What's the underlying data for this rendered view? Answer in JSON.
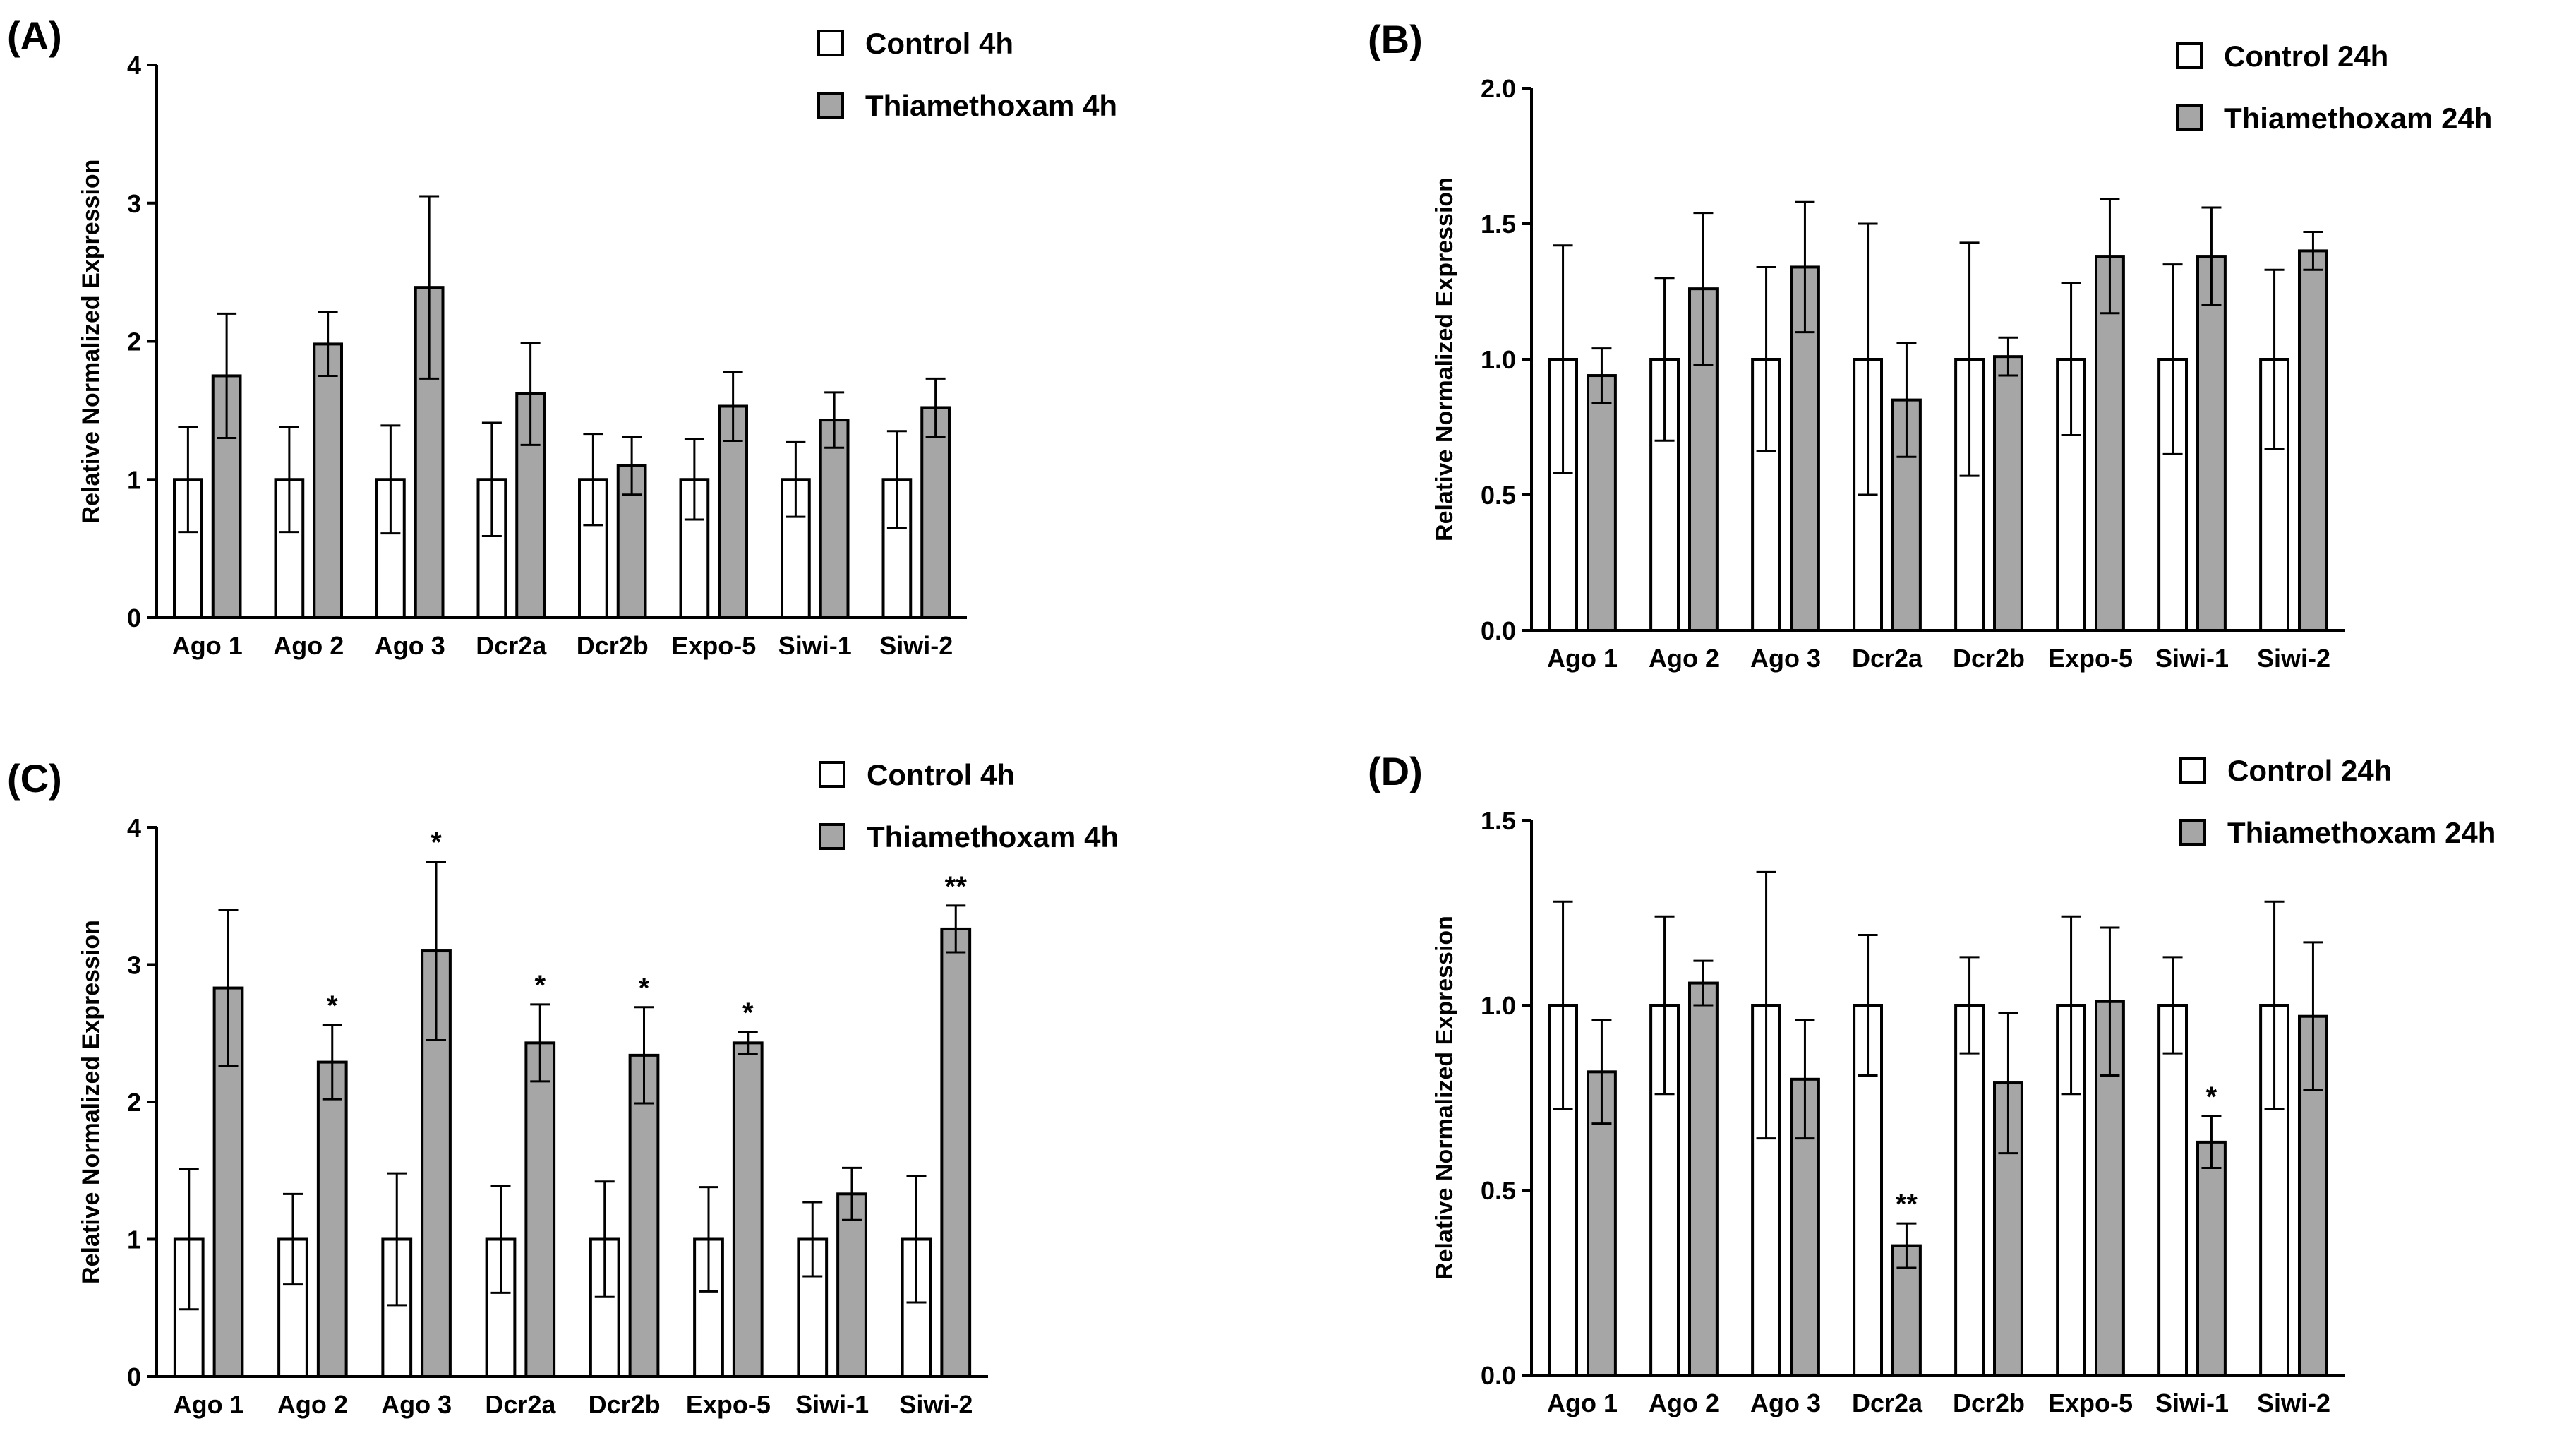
{
  "chart_data": [
    {
      "panel": "(A)",
      "type": "bar",
      "ylabel": "Relative Normalized Expression",
      "ylim": [
        0,
        4
      ],
      "yticks": [
        "0",
        "1",
        "2",
        "3",
        "4"
      ],
      "categories": [
        "Ago 1",
        "Ago 2",
        "Ago 3",
        "Dcr2a",
        "Dcr2b",
        "Expo-5",
        "Siwi-1",
        "Siwi-2"
      ],
      "series": [
        {
          "name": "Control 4h",
          "color": "#ffffff",
          "values": [
            1,
            1,
            1,
            1,
            1,
            1,
            1,
            1
          ],
          "errors": [
            0.38,
            0.38,
            0.39,
            0.41,
            0.33,
            0.29,
            0.27,
            0.35
          ]
        },
        {
          "name": "Thiamethoxam 4h",
          "color": "#a6a6a6",
          "values": [
            1.75,
            1.98,
            2.39,
            1.62,
            1.1,
            1.53,
            1.43,
            1.52
          ],
          "errors": [
            0.45,
            0.23,
            0.66,
            0.37,
            0.21,
            0.25,
            0.2,
            0.21
          ]
        }
      ],
      "annotations": [
        "",
        "",
        "",
        "",
        "",
        "",
        "",
        ""
      ]
    },
    {
      "panel": "(B)",
      "type": "bar",
      "ylabel": "Relative Normalized Expression",
      "ylim": [
        0,
        2
      ],
      "yticks": [
        "0.0",
        "0.5",
        "1.0",
        "1.5",
        "2.0"
      ],
      "categories": [
        "Ago 1",
        "Ago 2",
        "Ago 3",
        "Dcr2a",
        "Dcr2b",
        "Expo-5",
        "Siwi-1",
        "Siwi-2"
      ],
      "series": [
        {
          "name": "Control 24h",
          "color": "#ffffff",
          "values": [
            1,
            1,
            1,
            1,
            1,
            1,
            1,
            1
          ],
          "errors": [
            0.42,
            0.3,
            0.34,
            0.5,
            0.43,
            0.28,
            0.35,
            0.33
          ]
        },
        {
          "name": "Thiamethoxam 24h",
          "color": "#a6a6a6",
          "values": [
            0.94,
            1.26,
            1.34,
            0.85,
            1.01,
            1.38,
            1.38,
            1.4
          ],
          "errors": [
            0.1,
            0.28,
            0.24,
            0.21,
            0.07,
            0.21,
            0.18,
            0.07
          ]
        }
      ],
      "annotations": [
        "",
        "",
        "",
        "",
        "",
        "",
        "",
        ""
      ]
    },
    {
      "panel": "(C)",
      "type": "bar",
      "ylabel": "Relative Normalized Expression",
      "ylim": [
        0,
        4
      ],
      "yticks": [
        "0",
        "1",
        "2",
        "3",
        "4"
      ],
      "categories": [
        "Ago 1",
        "Ago 2",
        "Ago 3",
        "Dcr2a",
        "Dcr2b",
        "Expo-5",
        "Siwi-1",
        "Siwi-2"
      ],
      "series": [
        {
          "name": "Control 4h",
          "color": "#ffffff",
          "values": [
            1,
            1,
            1,
            1,
            1,
            1,
            1,
            1
          ],
          "errors": [
            0.51,
            0.33,
            0.48,
            0.39,
            0.42,
            0.38,
            0.27,
            0.46
          ]
        },
        {
          "name": "Thiamethoxam 4h",
          "color": "#a6a6a6",
          "values": [
            2.83,
            2.29,
            3.1,
            2.43,
            2.34,
            2.43,
            1.33,
            3.26
          ],
          "errors": [
            0.57,
            0.27,
            0.65,
            0.28,
            0.35,
            0.08,
            0.19,
            0.17
          ]
        }
      ],
      "annotations": [
        "",
        "*",
        "*",
        "*",
        "*",
        "*",
        "",
        "**"
      ]
    },
    {
      "panel": "(D)",
      "type": "bar",
      "ylabel": "Relative Normalized Expression",
      "ylim": [
        0,
        1.5
      ],
      "yticks": [
        "0.0",
        "0.5",
        "1.0",
        "1.5"
      ],
      "categories": [
        "Ago 1",
        "Ago 2",
        "Ago 3",
        "Dcr2a",
        "Dcr2b",
        "Expo-5",
        "Siwi-1",
        "Siwi-2"
      ],
      "series": [
        {
          "name": "Control 24h",
          "color": "#ffffff",
          "values": [
            1,
            1,
            1,
            1,
            1,
            1,
            1,
            1
          ],
          "errors": [
            0.28,
            0.24,
            0.36,
            0.19,
            0.13,
            0.24,
            0.13,
            0.28
          ]
        },
        {
          "name": "Thiamethoxam 24h",
          "color": "#a6a6a6",
          "values": [
            0.82,
            1.06,
            0.8,
            0.35,
            0.79,
            1.01,
            0.63,
            0.97
          ],
          "errors": [
            0.14,
            0.06,
            0.16,
            0.06,
            0.19,
            0.2,
            0.07,
            0.2
          ]
        }
      ],
      "annotations": [
        "",
        "",
        "",
        "**",
        "",
        "",
        "*",
        ""
      ]
    }
  ]
}
